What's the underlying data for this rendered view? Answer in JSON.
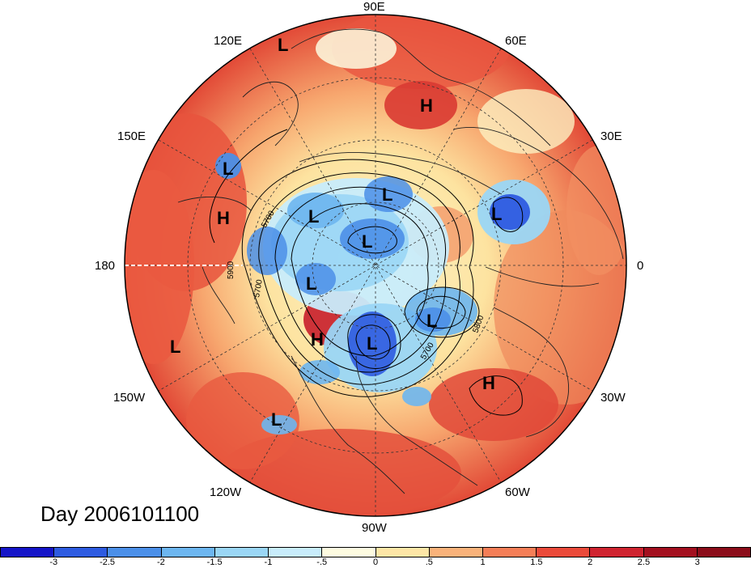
{
  "date_label": "Day 2006101100",
  "lon_labels": {
    "n90e": "90E",
    "n120e": "120E",
    "n60e": "60E",
    "n150e": "150E",
    "n30e": "30E",
    "n180": "180",
    "n0": "0",
    "n150w": "150W",
    "n30w": "30W",
    "n120w": "120W",
    "n60w": "60W",
    "n90w": "90W"
  },
  "pressure_systems": [
    {
      "type": "L"
    },
    {
      "type": "H"
    },
    {
      "type": "L"
    },
    {
      "type": "H"
    },
    {
      "type": "L"
    },
    {
      "type": "L"
    },
    {
      "type": "L"
    },
    {
      "type": "L"
    },
    {
      "type": "L"
    },
    {
      "type": "H"
    },
    {
      "type": "L"
    },
    {
      "type": "L"
    },
    {
      "type": "L"
    },
    {
      "type": "H"
    },
    {
      "type": "L"
    }
  ],
  "contour_labels": [
    "5700",
    "5900",
    "5700",
    "5800",
    "5700"
  ],
  "colorbar": {
    "colors": [
      "#1515c8",
      "#2e5be0",
      "#4b8fe8",
      "#6db6f0",
      "#9ad6f5",
      "#c8ecfb",
      "#fdfbe0",
      "#fde6a6",
      "#f9b27a",
      "#f47e57",
      "#ea4a3a",
      "#cf2430",
      "#a3101f"
    ],
    "ticks": [
      "-3",
      "-2.5",
      "-2",
      "-1.5",
      "-1",
      "-.5",
      "0",
      ".5",
      "1",
      "1.5",
      "2",
      "2.5",
      "3"
    ]
  }
}
